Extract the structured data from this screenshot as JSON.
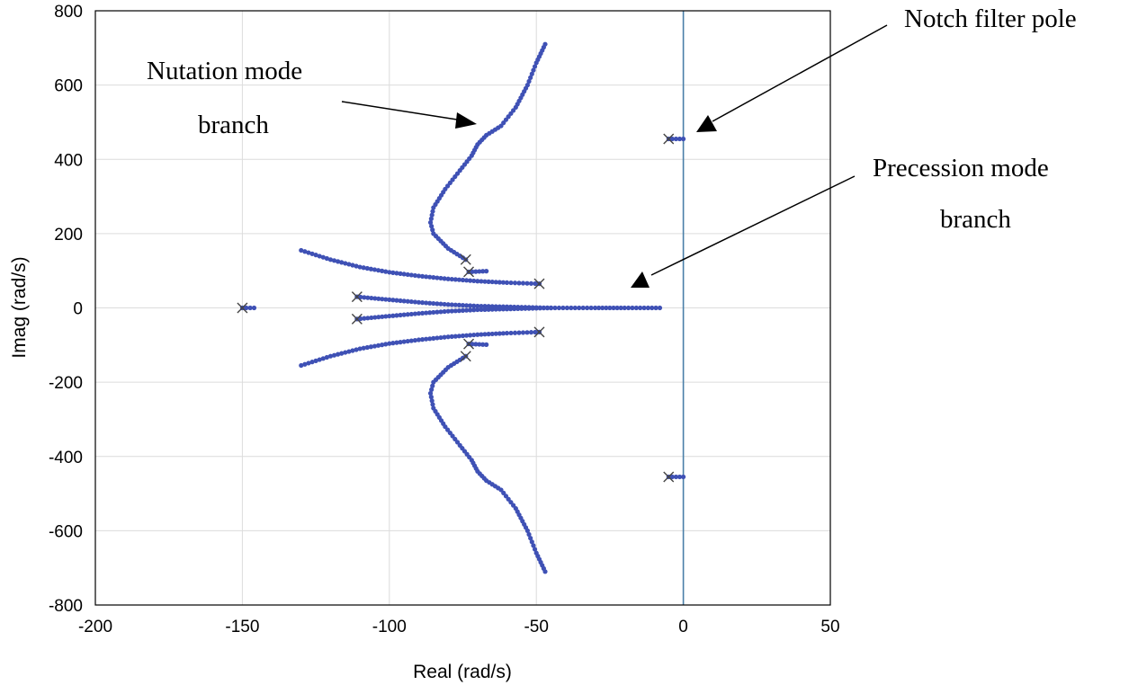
{
  "chart_data": {
    "type": "scatter",
    "title": "",
    "xlabel": "Real (rad/s)",
    "ylabel": "Imag (rad/s)",
    "xlim": [
      -200,
      50
    ],
    "ylim": [
      -800,
      800
    ],
    "xticks": [
      -200,
      -150,
      -100,
      -50,
      0,
      50
    ],
    "yticks": [
      -800,
      -600,
      -400,
      -200,
      0,
      200,
      400,
      600,
      800
    ],
    "xtick_labels": [
      "-200",
      "-150",
      "-100",
      "-50",
      "0",
      "50"
    ],
    "ytick_labels": [
      "-800",
      "-600",
      "-400",
      "-200",
      "0",
      "200",
      "400",
      "600",
      "800"
    ],
    "grid": true,
    "colors": {
      "locus": "#3f51b5",
      "pole": "#444444",
      "imag_axis": "#4a7fa8"
    },
    "open_loop_poles": [
      {
        "x": -150,
        "y": 0
      },
      {
        "x": -111,
        "y": 30
      },
      {
        "x": -111,
        "y": -30
      },
      {
        "x": -74,
        "y": 130
      },
      {
        "x": -74,
        "y": -130
      },
      {
        "x": -73,
        "y": 97
      },
      {
        "x": -73,
        "y": -97
      },
      {
        "x": -49,
        "y": 65
      },
      {
        "x": -49,
        "y": -65
      },
      {
        "x": -5,
        "y": 455
      },
      {
        "x": -5,
        "y": -455
      }
    ],
    "series": [
      {
        "name": "Nutation mode branch (upper)",
        "points": [
          [
            -74,
            130
          ],
          [
            -80,
            160
          ],
          [
            -85,
            200
          ],
          [
            -86,
            230
          ],
          [
            -85,
            270
          ],
          [
            -81,
            320
          ],
          [
            -76,
            370
          ],
          [
            -72,
            410
          ],
          [
            -70,
            440
          ],
          [
            -67,
            465
          ],
          [
            -62,
            490
          ],
          [
            -57,
            540
          ],
          [
            -53,
            600
          ],
          [
            -50,
            660
          ],
          [
            -47,
            710
          ]
        ]
      },
      {
        "name": "Nutation mode branch (lower)",
        "points": [
          [
            -74,
            -130
          ],
          [
            -80,
            -160
          ],
          [
            -85,
            -200
          ],
          [
            -86,
            -230
          ],
          [
            -85,
            -270
          ],
          [
            -81,
            -320
          ],
          [
            -76,
            -370
          ],
          [
            -72,
            -410
          ],
          [
            -70,
            -440
          ],
          [
            -67,
            -465
          ],
          [
            -62,
            -490
          ],
          [
            -57,
            -540
          ],
          [
            -53,
            -600
          ],
          [
            -50,
            -660
          ],
          [
            -47,
            -710
          ]
        ]
      },
      {
        "name": "Upper outer branch",
        "points": [
          [
            -49,
            65
          ],
          [
            -60,
            68
          ],
          [
            -70,
            72
          ],
          [
            -80,
            78
          ],
          [
            -90,
            86
          ],
          [
            -100,
            96
          ],
          [
            -110,
            110
          ],
          [
            -120,
            130
          ],
          [
            -130,
            155
          ]
        ]
      },
      {
        "name": "Lower outer branch",
        "points": [
          [
            -49,
            -65
          ],
          [
            -60,
            -68
          ],
          [
            -70,
            -72
          ],
          [
            -80,
            -78
          ],
          [
            -90,
            -86
          ],
          [
            -100,
            -96
          ],
          [
            -110,
            -110
          ],
          [
            -120,
            -130
          ],
          [
            -130,
            -155
          ]
        ]
      },
      {
        "name": "Precession mode branch (upper)",
        "points": [
          [
            -111,
            30
          ],
          [
            -100,
            22
          ],
          [
            -90,
            15
          ],
          [
            -80,
            9
          ],
          [
            -70,
            5
          ],
          [
            -60,
            3
          ],
          [
            -50,
            1
          ],
          [
            -45,
            0
          ]
        ]
      },
      {
        "name": "Precession mode branch (lower)",
        "points": [
          [
            -111,
            -30
          ],
          [
            -100,
            -22
          ],
          [
            -90,
            -15
          ],
          [
            -80,
            -9
          ],
          [
            -70,
            -5
          ],
          [
            -60,
            -3
          ],
          [
            -50,
            -1
          ],
          [
            -45,
            0
          ]
        ]
      },
      {
        "name": "Real axis branch",
        "points": [
          [
            -45,
            0
          ],
          [
            -30,
            0
          ],
          [
            -20,
            0
          ],
          [
            -8,
            0
          ]
        ]
      },
      {
        "name": "Segment near -73+97j",
        "points": [
          [
            -73,
            97
          ],
          [
            -67,
            99
          ]
        ]
      },
      {
        "name": "Segment near -73-97j",
        "points": [
          [
            -73,
            -97
          ],
          [
            -67,
            -99
          ]
        ]
      },
      {
        "name": "Notch filter pole branch (upper)",
        "points": [
          [
            -5,
            455
          ],
          [
            0,
            455
          ]
        ]
      },
      {
        "name": "Notch filter pole branch (lower)",
        "points": [
          [
            -5,
            -455
          ],
          [
            0,
            -455
          ]
        ]
      },
      {
        "name": "Branch near -150",
        "points": [
          [
            -150,
            0
          ],
          [
            -146,
            0
          ]
        ]
      }
    ],
    "annotations": [
      {
        "name": "nutation",
        "lines": [
          "Nutation mode",
          "branch"
        ],
        "arrow_to": {
          "x": -70,
          "y": 495
        }
      },
      {
        "name": "notch",
        "lines": [
          "Notch filter pole"
        ],
        "arrow_to": {
          "x": 3,
          "y": 475
        }
      },
      {
        "name": "precession",
        "lines": [
          "Precession mode",
          "branch"
        ],
        "arrow_to": {
          "x": -17,
          "y": 60
        }
      }
    ]
  }
}
